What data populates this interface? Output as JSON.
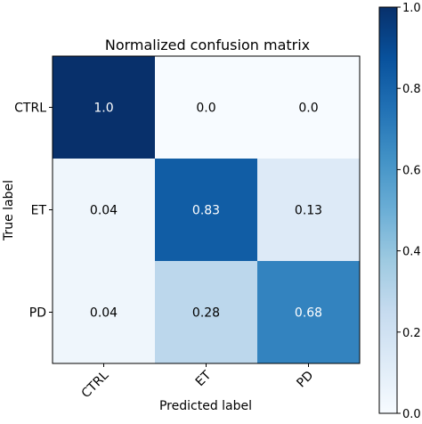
{
  "chart_data": {
    "type": "heatmap",
    "title": "Normalized confusion matrix",
    "xlabel": "Predicted label",
    "ylabel": "True label",
    "x_categories": [
      "CTRL",
      "ET",
      "PD"
    ],
    "y_categories": [
      "CTRL",
      "ET",
      "PD"
    ],
    "values": [
      [
        1.0,
        0.0,
        0.0
      ],
      [
        0.04,
        0.83,
        0.13
      ],
      [
        0.04,
        0.28,
        0.68
      ]
    ],
    "cell_labels": [
      [
        "1.0",
        "0.0",
        "0.0"
      ],
      [
        "0.04",
        "0.83",
        "0.13"
      ],
      [
        "0.04",
        "0.28",
        "0.68"
      ]
    ],
    "colorbar": {
      "range": [
        0.0,
        1.0
      ],
      "ticks": [
        "0.0",
        "0.2",
        "0.4",
        "0.6",
        "0.8",
        "1.0"
      ],
      "colormap": "Blues",
      "color_low": "#f7fbff",
      "color_high": "#08306b"
    },
    "grid": false
  }
}
